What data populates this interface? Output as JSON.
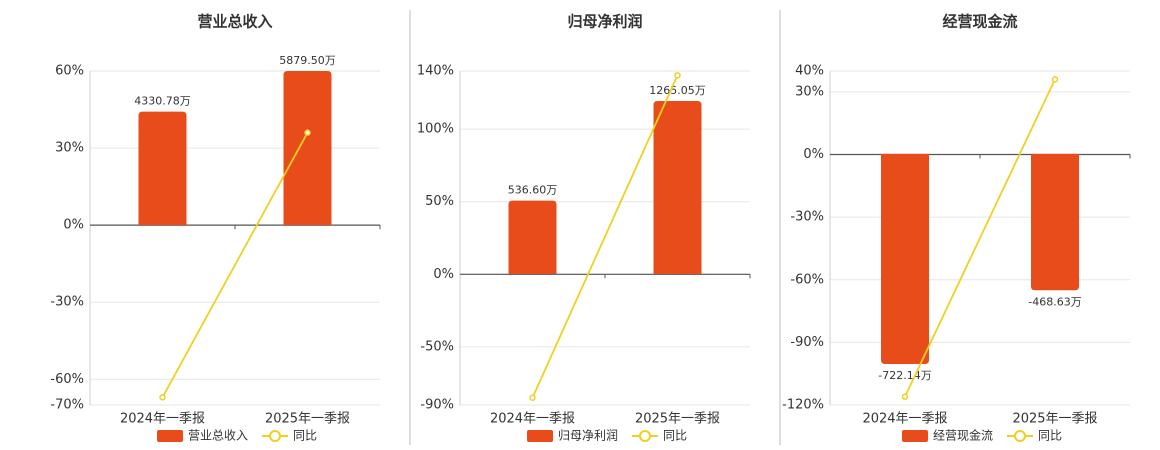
{
  "chart_data": [
    {
      "type": "bar",
      "title": "营业总收入",
      "categories": [
        "2024年一季报",
        "2025年一季报"
      ],
      "series": [
        {
          "name": "营业总收入",
          "color": "#e84c1b",
          "axis": "y2",
          "values": [
            4330.78,
            5879.5
          ],
          "value_labels": [
            "4330.78万",
            "5879.50万"
          ]
        },
        {
          "name": "同比",
          "color": "#f0d020",
          "type": "line",
          "values": [
            -67,
            36
          ]
        }
      ],
      "ylim": [
        -70,
        60
      ],
      "yticks": [
        {
          "value": 60,
          "label": "60%"
        },
        {
          "value": 30,
          "label": "30%"
        },
        {
          "value": 0,
          "label": "0%"
        },
        {
          "value": -30,
          "label": "-30%"
        },
        {
          "value": -60,
          "label": "-60%"
        },
        {
          "value": -70,
          "label": "-70%"
        }
      ],
      "y2lim": [
        -6860,
        5880
      ],
      "grid": true
    },
    {
      "type": "bar",
      "title": "归母净利润",
      "categories": [
        "2024年一季报",
        "2025年一季报"
      ],
      "series": [
        {
          "name": "归母净利润",
          "color": "#e84c1b",
          "axis": "y2",
          "values": [
            536.6,
            1265.05
          ],
          "value_labels": [
            "536.60万",
            "1265.05万"
          ]
        },
        {
          "name": "同比",
          "color": "#f0d020",
          "type": "line",
          "values": [
            -85,
            137
          ]
        }
      ],
      "ylim": [
        -90,
        140
      ],
      "yticks": [
        {
          "value": 140,
          "label": "140%"
        },
        {
          "value": 100,
          "label": "100%"
        },
        {
          "value": 50,
          "label": "50%"
        },
        {
          "value": 0,
          "label": "0%"
        },
        {
          "value": -50,
          "label": "-50%"
        },
        {
          "value": -90,
          "label": "-90%"
        }
      ],
      "y2lim": [
        -958,
        1484
      ],
      "grid": true
    },
    {
      "type": "bar",
      "title": "经营现金流",
      "categories": [
        "2024年一季报",
        "2025年一季报"
      ],
      "series": [
        {
          "name": "经营现金流",
          "color": "#e84c1b",
          "axis": "y2",
          "values": [
            -722.14,
            -468.63
          ],
          "value_labels": [
            "-722.14万",
            "-468.63万"
          ]
        },
        {
          "name": "同比",
          "color": "#f0d020",
          "type": "line",
          "values": [
            -116,
            36
          ]
        }
      ],
      "ylim": [
        -120,
        40
      ],
      "yticks": [
        {
          "value": 40,
          "label": "40%"
        },
        {
          "value": 30,
          "label": "30%"
        },
        {
          "value": 0,
          "label": "0%"
        },
        {
          "value": -30,
          "label": "-30%"
        },
        {
          "value": -60,
          "label": "-60%"
        },
        {
          "value": -90,
          "label": "-90%"
        },
        {
          "value": -120,
          "label": "-120%"
        }
      ],
      "y2lim": [
        -863,
        285
      ],
      "grid": true
    }
  ]
}
